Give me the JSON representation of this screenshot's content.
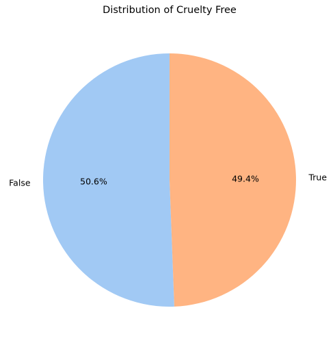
{
  "chart_data": {
    "type": "pie",
    "title": "Distribution of Cruelty Free",
    "slices": [
      {
        "label": "False",
        "value": 50.6,
        "pct_label": "50.6%",
        "color": "#a1c9f4"
      },
      {
        "label": "True",
        "value": 49.4,
        "pct_label": "49.4%",
        "color": "#ffb482"
      }
    ],
    "start_angle_deg": 90,
    "direction": "counterclockwise",
    "legend": "none"
  }
}
